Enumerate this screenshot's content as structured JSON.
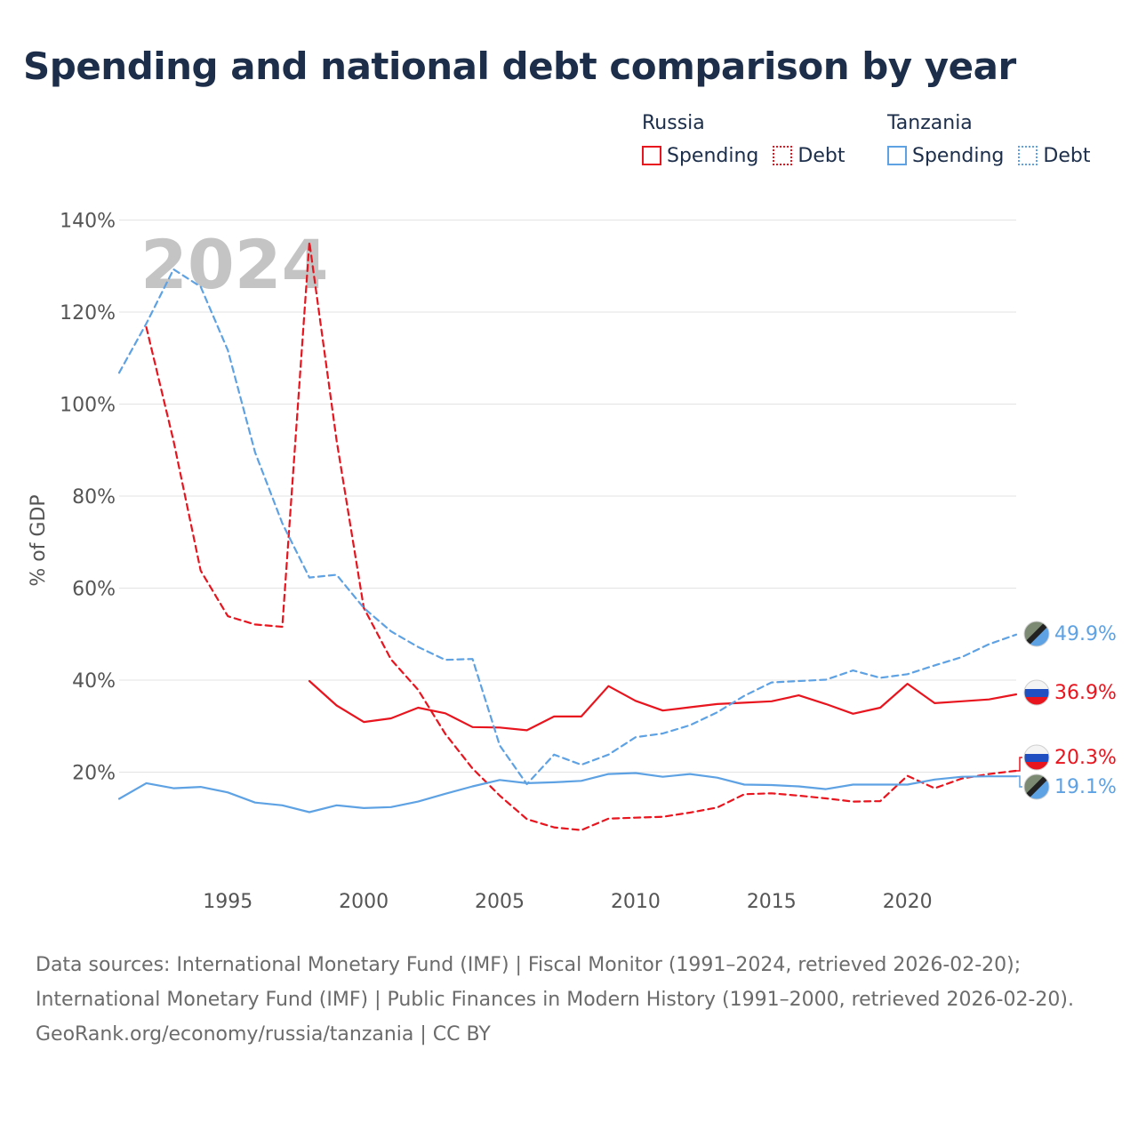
{
  "title": "Spending and national debt comparison by year",
  "legend": [
    {
      "country": "Russia",
      "color": "#e8141e",
      "items": [
        {
          "label": "Spending",
          "style": "solid"
        },
        {
          "label": "Debt",
          "style": "dotted"
        }
      ]
    },
    {
      "country": "Tanzania",
      "color": "#5ea2e4",
      "items": [
        {
          "label": "Spending",
          "style": "solid"
        },
        {
          "label": "Debt",
          "style": "dotted"
        }
      ]
    }
  ],
  "year_label": "2024",
  "end_labels": {
    "tanzania_debt": "49.9%",
    "russia_spending": "36.9%",
    "russia_debt": "20.3%",
    "tanzania_spending": "19.1%"
  },
  "footer": {
    "sources": "Data sources: International Monetary Fund (IMF) | Fiscal Monitor (1991–2024, retrieved 2026-02-20); International Monetary Fund (IMF) | Public Finances in Modern History (1991–2000, retrieved 2026-02-20).",
    "credit": "GeoRank.org/economy/russia/tanzania | CC BY"
  },
  "chart_data": {
    "type": "line",
    "title": "Spending and national debt comparison by year",
    "xlabel": "",
    "ylabel": "% of GDP",
    "xlim": [
      1991,
      2024
    ],
    "ylim": [
      0,
      140
    ],
    "x_ticks": [
      1995,
      2000,
      2005,
      2010,
      2015,
      2020
    ],
    "x_tick_labels": [
      "1995",
      "2000",
      "2005",
      "2010",
      "2015",
      "2020"
    ],
    "y_ticks": [
      20,
      40,
      60,
      80,
      100,
      120,
      140
    ],
    "y_tick_labels": [
      "20%",
      "40%",
      "60%",
      "80%",
      "100%",
      "120%",
      "140%"
    ],
    "grid": true,
    "series": [
      {
        "name": "Russia Spending",
        "country": "Russia",
        "measure": "Spending",
        "color": "#e8141e",
        "dash": "solid",
        "x": [
          1998,
          1999,
          2000,
          2001,
          2002,
          2003,
          2004,
          2005,
          2006,
          2007,
          2008,
          2009,
          2010,
          2011,
          2012,
          2013,
          2014,
          2015,
          2016,
          2017,
          2018,
          2019,
          2020,
          2021,
          2022,
          2023,
          2024
        ],
        "values": [
          39.8,
          34.5,
          30.9,
          31.7,
          34.0,
          32.8,
          29.8,
          29.7,
          29.1,
          32.1,
          32.1,
          38.7,
          35.5,
          33.4,
          34.1,
          34.8,
          35.1,
          35.4,
          36.7,
          34.8,
          32.7,
          34.0,
          39.2,
          35.0,
          35.4,
          35.8,
          36.9
        ]
      },
      {
        "name": "Russia Debt",
        "country": "Russia",
        "measure": "Debt",
        "color": "#e8141e",
        "dash": "dashed",
        "x": [
          1992,
          1993,
          1994,
          1995,
          1996,
          1997,
          1998,
          1999,
          2000,
          2001,
          2002,
          2003,
          2004,
          2005,
          2006,
          2007,
          2008,
          2009,
          2010,
          2011,
          2012,
          2013,
          2014,
          2015,
          2016,
          2017,
          2018,
          2019,
          2020,
          2021,
          2022,
          2023,
          2024
        ],
        "values": [
          116.7,
          92.0,
          63.8,
          53.9,
          52.1,
          51.6,
          135.2,
          92.1,
          55.7,
          44.5,
          37.9,
          28.3,
          20.8,
          14.9,
          9.8,
          8.0,
          7.4,
          9.9,
          10.1,
          10.3,
          11.2,
          12.3,
          15.2,
          15.4,
          14.9,
          14.3,
          13.6,
          13.7,
          19.2,
          16.5,
          18.6,
          19.6,
          20.3
        ]
      },
      {
        "name": "Tanzania Spending",
        "country": "Tanzania",
        "measure": "Spending",
        "color": "#5ea2e4",
        "dash": "solid",
        "x": [
          1991,
          1992,
          1993,
          1994,
          1995,
          1996,
          1997,
          1998,
          1999,
          2000,
          2001,
          2002,
          2003,
          2004,
          2005,
          2006,
          2007,
          2008,
          2009,
          2010,
          2011,
          2012,
          2013,
          2014,
          2015,
          2016,
          2017,
          2018,
          2019,
          2020,
          2021,
          2022,
          2023,
          2024
        ],
        "values": [
          14.2,
          17.6,
          16.5,
          16.8,
          15.6,
          13.4,
          12.8,
          11.3,
          12.8,
          12.2,
          12.4,
          13.6,
          15.3,
          16.9,
          18.3,
          17.6,
          17.8,
          18.1,
          19.6,
          19.8,
          19.0,
          19.6,
          18.8,
          17.3,
          17.2,
          16.9,
          16.3,
          17.3,
          17.3,
          17.3,
          18.4,
          19.0,
          19.1,
          19.1
        ]
      },
      {
        "name": "Tanzania Debt",
        "country": "Tanzania",
        "measure": "Debt",
        "color": "#5ea2e4",
        "dash": "dashed",
        "x": [
          1991,
          1992,
          1993,
          1994,
          1995,
          1996,
          1997,
          1998,
          1999,
          2000,
          2001,
          2002,
          2003,
          2004,
          2005,
          2006,
          2007,
          2008,
          2009,
          2010,
          2011,
          2012,
          2013,
          2014,
          2015,
          2016,
          2017,
          2018,
          2019,
          2020,
          2021,
          2022,
          2023,
          2024
        ],
        "values": [
          106.8,
          117.5,
          129.3,
          125.5,
          111.7,
          89.5,
          74.1,
          62.3,
          62.9,
          55.7,
          50.6,
          47.2,
          44.4,
          44.6,
          25.8,
          17.4,
          23.8,
          21.6,
          23.8,
          27.6,
          28.4,
          30.2,
          33.0,
          36.6,
          39.5,
          39.8,
          40.1,
          42.1,
          40.5,
          41.3,
          43.2,
          45.0,
          47.8,
          49.9
        ]
      }
    ]
  }
}
